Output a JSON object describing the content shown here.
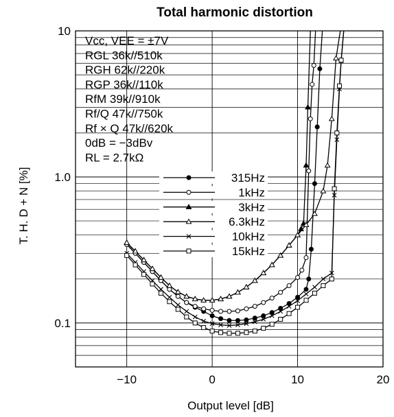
{
  "chart_data": {
    "type": "line",
    "title": "Total harmonic distortion",
    "xlabel": "Output level [dB]",
    "ylabel": "T. H. D + N [%]",
    "xlim": [
      -16,
      20
    ],
    "ylim": [
      0.05,
      10
    ],
    "yscale": "log",
    "x_ticks": [
      -10,
      0,
      10,
      20
    ],
    "x_tick_labels": [
      "−10",
      "0",
      "10",
      "20"
    ],
    "y_ticks": [
      0.1,
      1,
      10
    ],
    "y_tick_labels": [
      "0.1",
      "1.0",
      "10"
    ],
    "grid": true,
    "conditions": [
      "Vcc, VEE = ±7V",
      "RGL 36k//510k",
      "RGH 62k//220k",
      "RGP 36k//110k",
      "RfM 39k//910k",
      "Rf/Q 47k//750k",
      "Rf × Q 47k//620k",
      "0dB = −3dBv",
      "RL = 2.7kΩ"
    ],
    "legend_position": "center",
    "series": [
      {
        "name": "315Hz",
        "marker": "filled-circle",
        "x": [
          -10,
          -9,
          -8,
          -7,
          -6,
          -5,
          -4,
          -3,
          -2,
          -1,
          0,
          1,
          2,
          3,
          4,
          5,
          6,
          7,
          8,
          9,
          10,
          11,
          11.3,
          11.6,
          12.0,
          12.3,
          12.6,
          12.9
        ],
        "y": [
          0.345,
          0.3,
          0.26,
          0.225,
          0.195,
          0.17,
          0.152,
          0.138,
          0.128,
          0.12,
          0.112,
          0.107,
          0.104,
          0.104,
          0.105,
          0.108,
          0.112,
          0.118,
          0.126,
          0.136,
          0.15,
          0.17,
          0.2,
          0.32,
          0.9,
          2.2,
          5.5,
          10
        ]
      },
      {
        "name": "1kHz",
        "marker": "open-circle",
        "x": [
          -10,
          -9,
          -8,
          -7,
          -6,
          -5,
          -4,
          -3,
          -2,
          -1,
          0,
          1,
          2,
          3,
          4,
          5,
          6,
          7,
          8,
          9,
          10,
          10.5,
          11,
          11.3,
          11.5,
          11.7,
          11.9,
          12.1
        ],
        "y": [
          0.345,
          0.3,
          0.26,
          0.225,
          0.195,
          0.17,
          0.152,
          0.138,
          0.13,
          0.125,
          0.122,
          0.12,
          0.12,
          0.121,
          0.125,
          0.13,
          0.138,
          0.148,
          0.162,
          0.18,
          0.205,
          0.23,
          0.28,
          1.1,
          2.5,
          4.3,
          5.8,
          10
        ]
      },
      {
        "name": "3kHz",
        "marker": "filled-triangle",
        "x": [
          -10,
          -9,
          -8,
          -7,
          -6,
          -5,
          -4,
          -3,
          -2,
          -1,
          0,
          1,
          2,
          3,
          4,
          5,
          6,
          7,
          8,
          9,
          10,
          10.4,
          10.7,
          11.0,
          11.2,
          11.5
        ],
        "y": [
          0.355,
          0.31,
          0.27,
          0.235,
          0.205,
          0.18,
          0.163,
          0.152,
          0.146,
          0.143,
          0.143,
          0.146,
          0.152,
          0.162,
          0.176,
          0.195,
          0.22,
          0.25,
          0.29,
          0.34,
          0.4,
          0.44,
          0.48,
          1.2,
          3.0,
          10
        ]
      },
      {
        "name": "6.3kHz",
        "marker": "open-triangle",
        "x": [
          -10,
          -9,
          -8,
          -7,
          -6,
          -5,
          -4,
          -3,
          -2,
          -1,
          0,
          1,
          2,
          3,
          4,
          5,
          6,
          7,
          8,
          9,
          10,
          11,
          12,
          13,
          13.5,
          14.0,
          14.5,
          15.0
        ],
        "y": [
          0.355,
          0.31,
          0.27,
          0.235,
          0.205,
          0.18,
          0.163,
          0.152,
          0.146,
          0.143,
          0.143,
          0.146,
          0.152,
          0.162,
          0.176,
          0.195,
          0.22,
          0.25,
          0.29,
          0.34,
          0.4,
          0.47,
          0.56,
          0.8,
          1.2,
          2.5,
          6.5,
          10
        ]
      },
      {
        "name": "10kHz",
        "marker": "cross",
        "x": [
          -10,
          -9,
          -8,
          -7,
          -6,
          -5,
          -4,
          -3,
          -2,
          -1,
          0,
          1,
          2,
          3,
          4,
          5,
          6,
          7,
          8,
          9,
          10,
          11,
          12,
          13,
          14,
          14.3,
          14.6,
          14.9,
          15.1,
          15.4
        ],
        "y": [
          0.3,
          0.26,
          0.225,
          0.195,
          0.17,
          0.15,
          0.133,
          0.12,
          0.11,
          0.103,
          0.099,
          0.097,
          0.096,
          0.097,
          0.099,
          0.102,
          0.106,
          0.112,
          0.12,
          0.13,
          0.142,
          0.158,
          0.176,
          0.2,
          0.22,
          0.75,
          1.8,
          4.0,
          6.2,
          10
        ]
      },
      {
        "name": "15kHz",
        "marker": "open-square",
        "x": [
          -10,
          -9,
          -8,
          -7,
          -6,
          -5,
          -4,
          -3,
          -2,
          -1,
          0,
          1,
          2,
          3,
          4,
          5,
          6,
          7,
          8,
          9,
          10,
          11,
          12,
          13,
          14,
          14.3,
          14.6,
          14.9,
          15.1,
          15.4
        ],
        "y": [
          0.29,
          0.25,
          0.215,
          0.185,
          0.16,
          0.14,
          0.124,
          0.11,
          0.1,
          0.093,
          0.088,
          0.086,
          0.085,
          0.085,
          0.086,
          0.088,
          0.092,
          0.098,
          0.106,
          0.116,
          0.128,
          0.143,
          0.16,
          0.18,
          0.2,
          0.83,
          2.0,
          4.2,
          6.3,
          10
        ]
      }
    ]
  }
}
